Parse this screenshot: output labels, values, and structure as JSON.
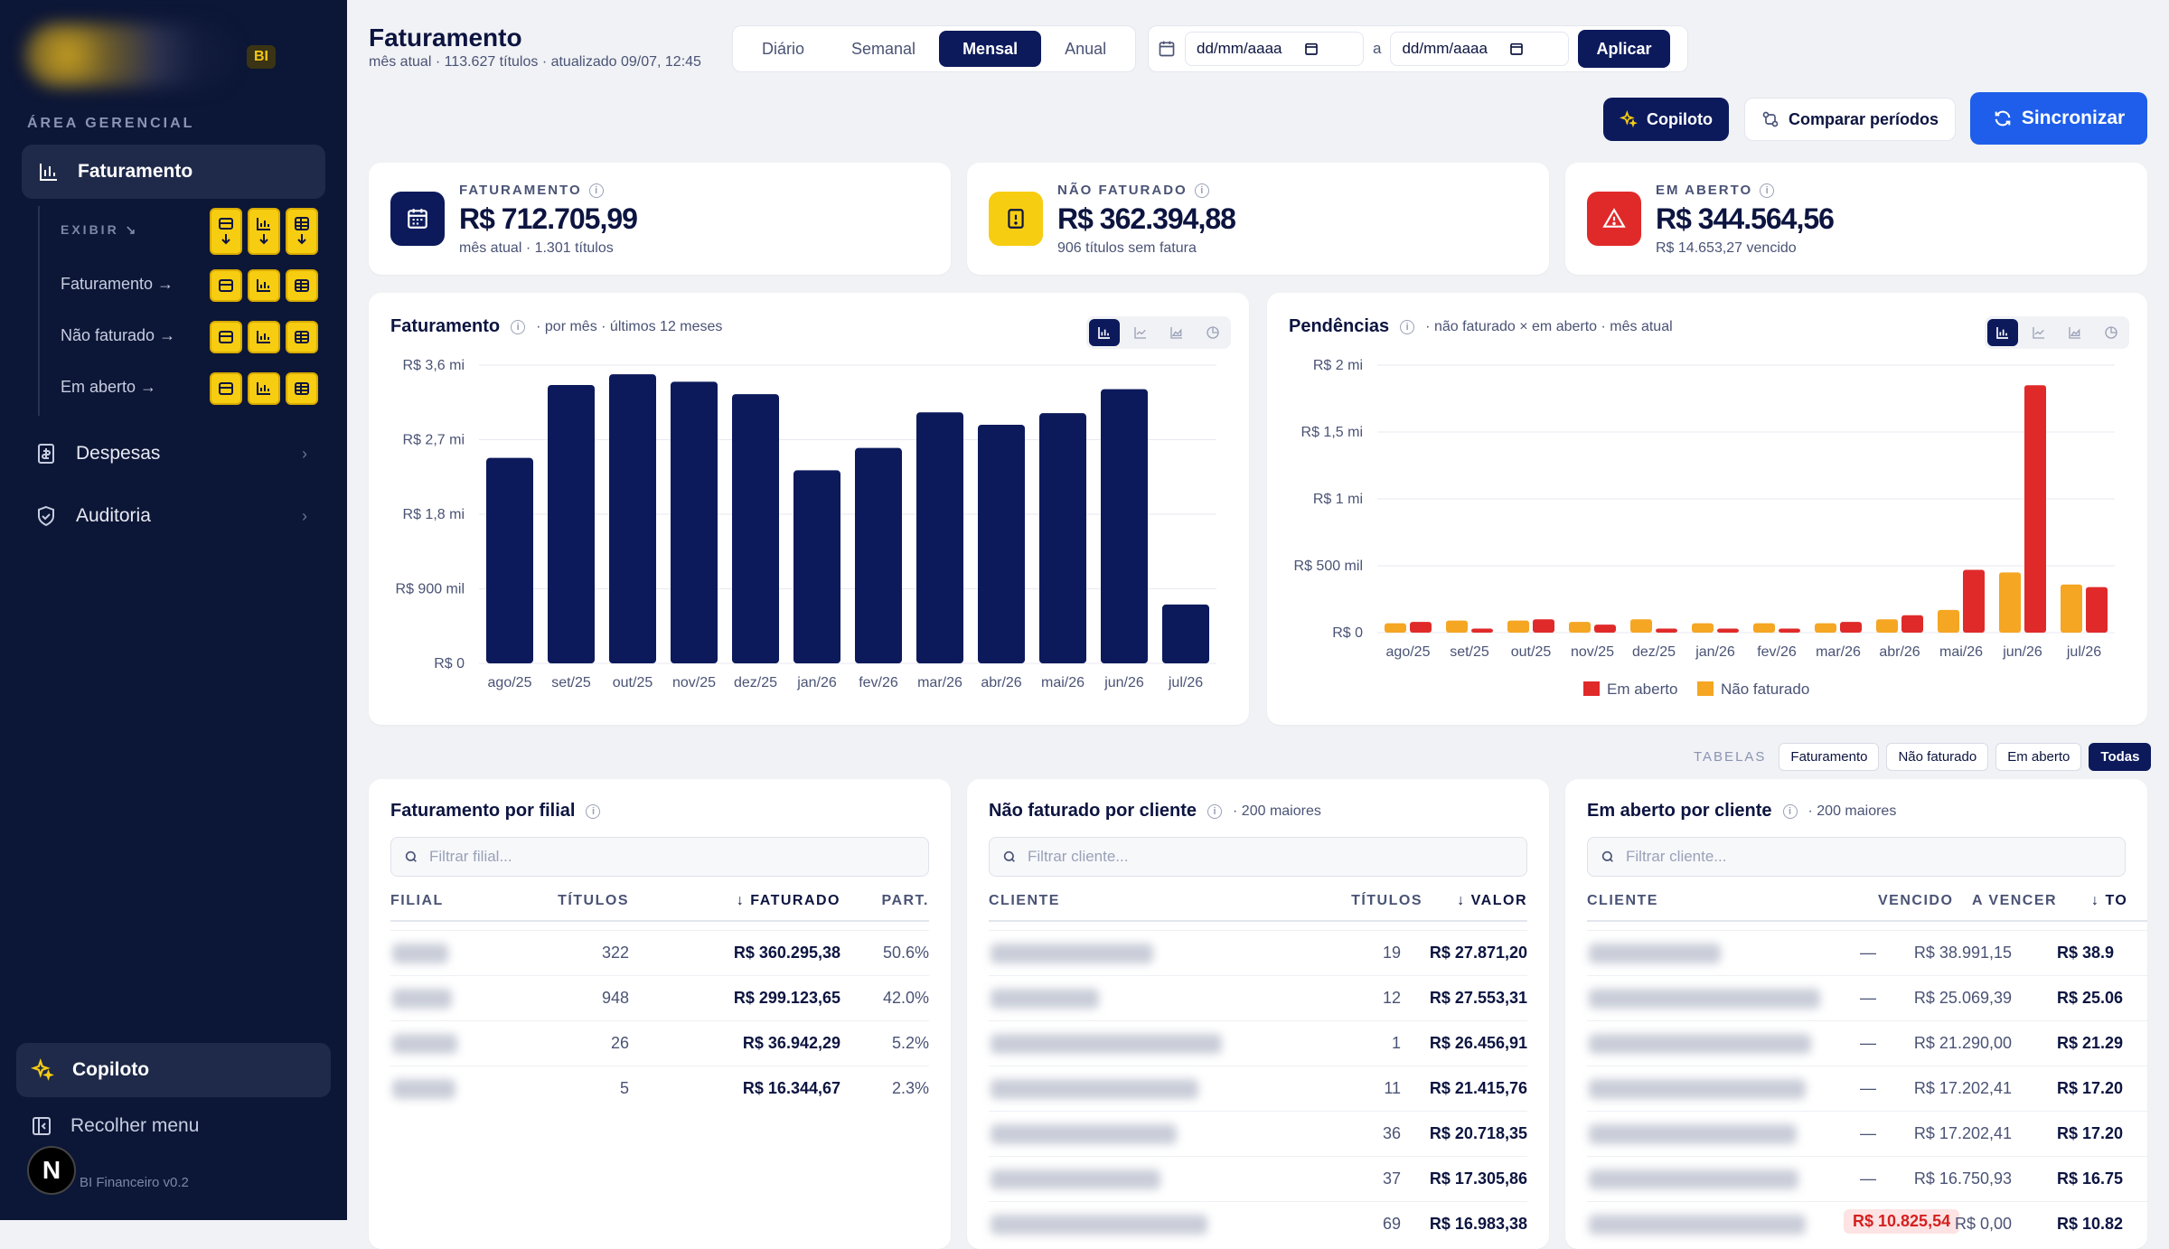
{
  "sidebar": {
    "badge": "BI",
    "area_label": "ÁREA GERENCIAL",
    "active_item": "Faturamento",
    "exibir_label": "EXIBIR ↘",
    "sub_items": [
      "Faturamento →",
      "Não faturado →",
      "Em aberto →"
    ],
    "items": [
      "Despesas",
      "Auditoria"
    ],
    "copiloto": "Copiloto",
    "recolher": "Recolher menu",
    "avatar": "N",
    "version": "BI Financeiro v0.2"
  },
  "header": {
    "title": "Faturamento",
    "subtitle": "mês atual · 113.627 títulos · atualizado 09/07, 12:45",
    "periods": [
      "Diário",
      "Semanal",
      "Mensal",
      "Anual"
    ],
    "active_period": "Mensal",
    "date_placeholder": "dd/mm/aaaa",
    "date_sep": "a",
    "apply": "Aplicar",
    "copiloto": "Copiloto",
    "compare": "Comparar períodos",
    "sync": "Sincronizar"
  },
  "kpis": [
    {
      "label": "FATURAMENTO",
      "value": "R$ 712.705,99",
      "sub": "mês atual · 1.301 títulos",
      "color": "#0c1a5c"
    },
    {
      "label": "NÃO FATURADO",
      "value": "R$ 362.394,88",
      "sub": "906 títulos sem fatura",
      "color": "#f7cd12"
    },
    {
      "label": "EM ABERTO",
      "value": "R$ 344.564,56",
      "sub": "R$ 14.653,27 vencido",
      "color": "#e02a2a"
    }
  ],
  "charts": {
    "faturamento": {
      "title": "Faturamento",
      "subtitle": "· por mês · últimos 12 meses"
    },
    "pendencias": {
      "title": "Pendências",
      "subtitle": "· não faturado × em aberto · mês atual"
    }
  },
  "chart_data": [
    {
      "type": "bar",
      "title": "Faturamento",
      "categories": [
        "ago/25",
        "set/25",
        "out/25",
        "nov/25",
        "dez/25",
        "jan/26",
        "fev/26",
        "mar/26",
        "abr/26",
        "mai/26",
        "jun/26",
        "jul/26"
      ],
      "values": [
        2.48,
        3.36,
        3.49,
        3.4,
        3.25,
        2.33,
        2.6,
        3.03,
        2.88,
        3.02,
        3.31,
        0.71
      ],
      "ylabel": "R$ mi",
      "yticks": [
        "R$ 0",
        "R$ 900 mil",
        "R$ 1,8 mi",
        "R$ 2,7 mi",
        "R$ 3,6 mi"
      ],
      "ylim": [
        0,
        3.6
      ],
      "color": "#0c1a5c"
    },
    {
      "type": "bar",
      "title": "Pendências",
      "categories": [
        "ago/25",
        "set/25",
        "out/25",
        "nov/25",
        "dez/25",
        "jan/26",
        "fev/26",
        "mar/26",
        "abr/26",
        "mai/26",
        "jun/26",
        "jul/26"
      ],
      "series": [
        {
          "name": "Não faturado",
          "color": "#f5a623",
          "values": [
            0.07,
            0.09,
            0.09,
            0.08,
            0.1,
            0.07,
            0.07,
            0.07,
            0.1,
            0.17,
            0.45,
            0.36
          ]
        },
        {
          "name": "Em aberto",
          "color": "#e02a2a",
          "values": [
            0.08,
            0.03,
            0.1,
            0.06,
            0.03,
            0.03,
            0.03,
            0.08,
            0.13,
            0.47,
            1.85,
            0.34
          ]
        }
      ],
      "ylabel": "R$ mi",
      "yticks": [
        "R$ 0",
        "R$ 500 mil",
        "R$ 1 mi",
        "R$ 1,5 mi",
        "R$ 2 mi"
      ],
      "ylim": [
        0,
        2
      ],
      "legend": [
        "Em aberto",
        "Não faturado"
      ]
    }
  ],
  "tables_tabs": {
    "label": "TABELAS",
    "tabs": [
      "Faturamento",
      "Não faturado",
      "Em aberto",
      "Todas"
    ],
    "active": "Todas"
  },
  "table_filial": {
    "title": "Faturamento por filial",
    "placeholder": "Filtrar filial...",
    "headers": [
      "FILIAL",
      "TÍTULOS",
      "↓ FATURADO",
      "PART."
    ],
    "rows": [
      {
        "titulos": "322",
        "faturado": "R$ 360.295,38",
        "part": "50.6%"
      },
      {
        "titulos": "948",
        "faturado": "R$ 299.123,65",
        "part": "42.0%"
      },
      {
        "titulos": "26",
        "faturado": "R$ 36.942,29",
        "part": "5.2%"
      },
      {
        "titulos": "5",
        "faturado": "R$ 16.344,67",
        "part": "2.3%"
      }
    ]
  },
  "table_nao_faturado": {
    "title": "Não faturado por cliente",
    "subtitle": "· 200 maiores",
    "placeholder": "Filtrar cliente...",
    "headers": [
      "CLIENTE",
      "TÍTULOS",
      "↓ VALOR"
    ],
    "rows": [
      {
        "titulos": "19",
        "valor": "R$ 27.871,20"
      },
      {
        "titulos": "12",
        "valor": "R$ 27.553,31"
      },
      {
        "titulos": "1",
        "valor": "R$ 26.456,91"
      },
      {
        "titulos": "11",
        "valor": "R$ 21.415,76"
      },
      {
        "titulos": "36",
        "valor": "R$ 20.718,35"
      },
      {
        "titulos": "37",
        "valor": "R$ 17.305,86"
      },
      {
        "titulos": "69",
        "valor": "R$ 16.983,38"
      }
    ]
  },
  "table_em_aberto": {
    "title": "Em aberto por cliente",
    "subtitle": "· 200 maiores",
    "placeholder": "Filtrar cliente...",
    "headers": [
      "CLIENTE",
      "VENCIDO",
      "A VENCER",
      "↓ TO"
    ],
    "rows": [
      {
        "vencido": "—",
        "a_vencer": "R$ 38.991,15",
        "total": "R$ 38.9"
      },
      {
        "vencido": "—",
        "a_vencer": "R$ 25.069,39",
        "total": "R$ 25.06"
      },
      {
        "vencido": "—",
        "a_vencer": "R$ 21.290,00",
        "total": "R$ 21.29"
      },
      {
        "vencido": "—",
        "a_vencer": "R$ 17.202,41",
        "total": "R$ 17.20"
      },
      {
        "vencido": "—",
        "a_vencer": "R$ 17.202,41",
        "total": "R$ 17.20"
      },
      {
        "vencido": "—",
        "a_vencer": "R$ 16.750,93",
        "total": "R$ 16.75"
      },
      {
        "vencido": "R$ 10.825,54",
        "a_vencer": "R$ 0,00",
        "total": "R$ 10.82"
      }
    ]
  }
}
